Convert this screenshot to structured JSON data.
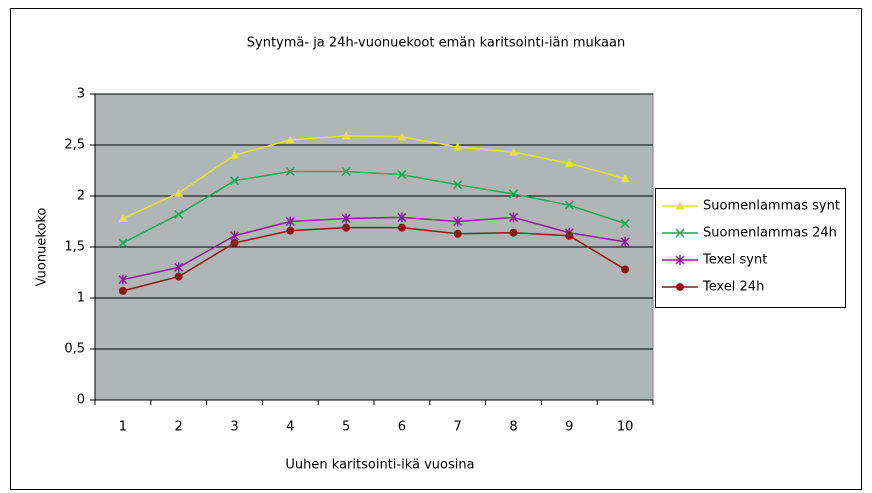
{
  "chart_data": {
    "type": "line",
    "title": "Syntymä- ja 24h-vuonuekoot emän karitsointi-iän mukaan",
    "x_label": "Uuhen karitsointi-ikä vuosina",
    "y_label": "Vuonuekoko",
    "categories": [
      "1",
      "2",
      "3",
      "4",
      "5",
      "6",
      "7",
      "8",
      "9",
      "10"
    ],
    "ylim": [
      0,
      3
    ],
    "yticks": [
      0,
      {
        "value": 0.5,
        "label": "0,5"
      },
      1,
      {
        "value": 1.5,
        "label": "1,5"
      },
      2,
      {
        "value": 2.5,
        "label": "2,5"
      },
      3
    ],
    "grid": true,
    "legend": "right",
    "series": [
      {
        "name": "Suomenlammas synt",
        "color": "#e2e23a",
        "marker": "triangle",
        "values": [
          1.78,
          2.03,
          2.4,
          2.55,
          2.59,
          2.58,
          2.48,
          2.43,
          2.32,
          2.17
        ]
      },
      {
        "name": "Suomenlammas 24h",
        "color": "#17a65a",
        "marker": "x",
        "values": [
          1.54,
          1.82,
          2.15,
          2.24,
          2.24,
          2.21,
          2.11,
          2.02,
          1.91,
          1.73
        ]
      },
      {
        "name": "Texel synt",
        "color": "#8e1c9c",
        "marker": "star",
        "values": [
          1.18,
          1.3,
          1.61,
          1.75,
          1.78,
          1.79,
          1.75,
          1.79,
          1.64,
          1.55
        ]
      },
      {
        "name": "Texel 24h",
        "color": "#8c1a1a",
        "marker": "circle",
        "values": [
          1.07,
          1.21,
          1.54,
          1.66,
          1.69,
          1.69,
          1.63,
          1.64,
          1.61,
          1.28
        ]
      }
    ]
  }
}
